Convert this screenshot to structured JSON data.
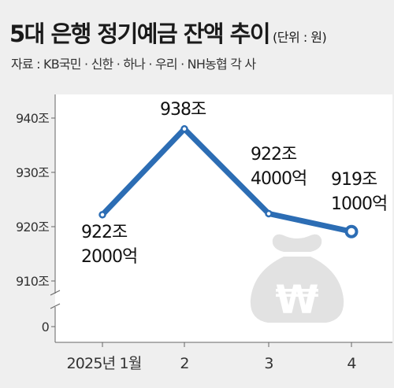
{
  "title": "5대 은행 정기예금 잔액 추이",
  "unit": "(단위 : 원)",
  "source": "자료 : KB국민 · 신한 · 하나 · 우리 · NH농협 각 사",
  "colors": {
    "line": "#2c6db4",
    "background": "#efefef",
    "plot": "#ffffff",
    "watermark": "#e2e2e2"
  },
  "icon": "money-bag-won-icon",
  "chart_data": {
    "type": "line",
    "categories": [
      "2025년 1월",
      "2",
      "3",
      "4"
    ],
    "values": [
      922.2,
      938,
      922.4,
      919.1
    ],
    "data_labels": [
      [
        "922조",
        "2000억"
      ],
      [
        "938조"
      ],
      [
        "922조",
        "4000억"
      ],
      [
        "919조",
        "1000억"
      ]
    ],
    "y_ticks": [
      {
        "value": 940,
        "label": "940조"
      },
      {
        "value": 930,
        "label": "930조"
      },
      {
        "value": 920,
        "label": "920조"
      },
      {
        "value": 910,
        "label": "910조"
      },
      {
        "value": 0,
        "label": "0"
      }
    ],
    "ylim": [
      905,
      945
    ],
    "axis_break": true,
    "grid": false,
    "legend": "none"
  }
}
